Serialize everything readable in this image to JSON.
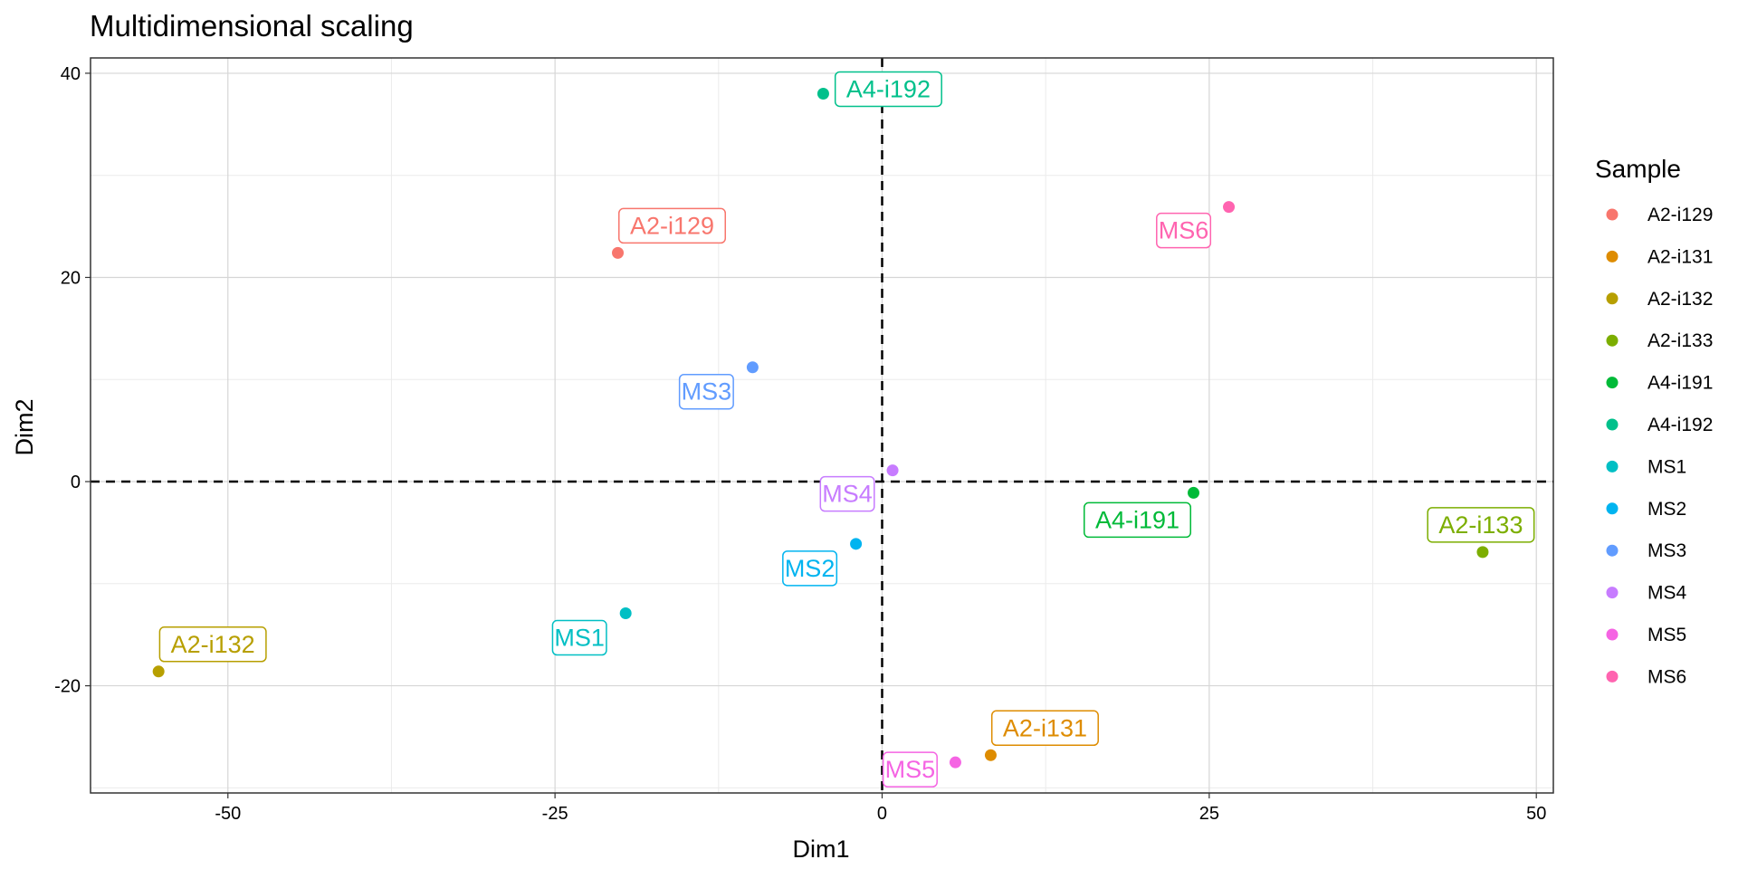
{
  "chart_data": {
    "type": "scatter",
    "title": "Multidimensional scaling",
    "xlabel": "Dim1",
    "ylabel": "Dim2",
    "xlim": [
      -60.5,
      51.3
    ],
    "ylim": [
      -30.5,
      41.5
    ],
    "xticks": [
      -50,
      -25,
      0,
      25,
      50
    ],
    "xtick_labels": [
      "-50",
      "-25",
      "0",
      "25",
      "50"
    ],
    "yticks": [
      -20,
      0,
      20,
      40
    ],
    "ytick_labels": [
      "-20",
      "0",
      "20",
      "40"
    ],
    "grid": true,
    "reference_lines": {
      "x": 0,
      "y": 0,
      "style": "dashed"
    },
    "legend": {
      "title": "Sample",
      "position": "right"
    },
    "series": [
      {
        "name": "A2-i129",
        "x": -20.2,
        "y": 22.4,
        "color": "#F8766D"
      },
      {
        "name": "A2-i131",
        "x": 8.3,
        "y": -26.8,
        "color": "#DE8C00"
      },
      {
        "name": "A2-i132",
        "x": -55.3,
        "y": -18.6,
        "color": "#B79F00"
      },
      {
        "name": "A2-i133",
        "x": 45.9,
        "y": -6.9,
        "color": "#7CAE00"
      },
      {
        "name": "A4-i191",
        "x": 23.8,
        "y": -1.1,
        "color": "#00BA38"
      },
      {
        "name": "A4-i192",
        "x": -4.5,
        "y": 38.0,
        "color": "#00C08B"
      },
      {
        "name": "MS1",
        "x": -19.6,
        "y": -12.9,
        "color": "#00BFC4"
      },
      {
        "name": "MS2",
        "x": -2.0,
        "y": -6.1,
        "color": "#00B4F0"
      },
      {
        "name": "MS3",
        "x": -9.9,
        "y": 11.2,
        "color": "#619CFF"
      },
      {
        "name": "MS4",
        "x": 0.8,
        "y": 1.1,
        "color": "#C77CFF"
      },
      {
        "name": "MS5",
        "x": 5.6,
        "y": -27.5,
        "color": "#F564E3"
      },
      {
        "name": "MS6",
        "x": 26.5,
        "y": 26.9,
        "color": "#FF64B0"
      }
    ]
  }
}
